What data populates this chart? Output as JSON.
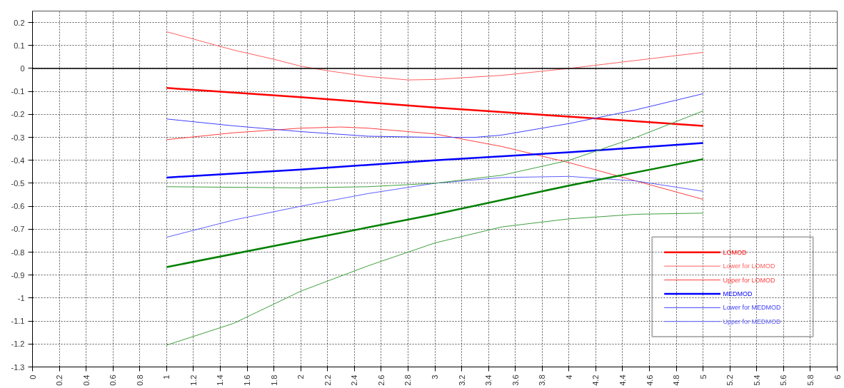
{
  "chart_data": {
    "type": "line",
    "xlim": [
      0,
      6
    ],
    "ylim": [
      -1.3,
      0.25
    ],
    "xticks": [
      0,
      0.2,
      0.4,
      0.6,
      0.8,
      1,
      1.2,
      1.4,
      1.6,
      1.8,
      2,
      2.2,
      2.4,
      2.6,
      2.8,
      3,
      3.2,
      3.4,
      3.6,
      3.8,
      4,
      4.2,
      4.4,
      4.6,
      4.8,
      5,
      5.2,
      5.4,
      5.6,
      5.8,
      6
    ],
    "yticks": [
      -1.3,
      -1.2,
      -1.1,
      -1,
      -0.9,
      -0.8,
      -0.7,
      -0.6,
      -0.5,
      -0.4,
      -0.3,
      -0.2,
      -0.1,
      0,
      0.1,
      0.2
    ],
    "grid": true,
    "legend": "bottom right",
    "line_style": "solid",
    "marker": "none",
    "ref_lines": [
      {
        "axis": "y",
        "value": 0,
        "color": "#000000"
      }
    ],
    "series": [
      {
        "name": "LOMOD",
        "color": "#ff0000",
        "x": [
          1,
          2,
          3,
          4,
          5
        ],
        "values": [
          -0.085,
          -0.125,
          -0.17,
          -0.21,
          -0.25
        ]
      },
      {
        "name": "Lower for LOMOD",
        "color": "#ff6060",
        "x": [
          1,
          1.5,
          1.8,
          2,
          2.2,
          2.5,
          2.8,
          3,
          3.5,
          4,
          4.5,
          5
        ],
        "values": [
          0.16,
          0.08,
          0.04,
          0.01,
          -0.01,
          -0.035,
          -0.05,
          -0.048,
          -0.03,
          0.0,
          0.035,
          0.07
        ]
      },
      {
        "name": "Upper for LOMOD",
        "color": "#ff4040",
        "x": [
          1,
          1.5,
          2,
          2.3,
          2.5,
          3,
          3.5,
          4,
          4.5,
          5
        ],
        "values": [
          -0.31,
          -0.28,
          -0.26,
          -0.255,
          -0.26,
          -0.285,
          -0.34,
          -0.41,
          -0.49,
          -0.57
        ]
      },
      {
        "name": "MEDMOD",
        "color": "#0000ff",
        "x": [
          1,
          2,
          3,
          4,
          5
        ],
        "values": [
          -0.475,
          -0.44,
          -0.4,
          -0.365,
          -0.325
        ]
      },
      {
        "name": "Lower for MEDMOD",
        "color": "#4040ff",
        "x": [
          1,
          1.5,
          2,
          2.5,
          3,
          3.3,
          3.5,
          4,
          4.5,
          5
        ],
        "values": [
          -0.22,
          -0.25,
          -0.275,
          -0.295,
          -0.3,
          -0.3,
          -0.29,
          -0.24,
          -0.18,
          -0.11
        ]
      },
      {
        "name": "Upper for MEDMOD",
        "color": "#6060ff",
        "x": [
          1,
          1.5,
          2,
          2.5,
          3,
          3.5,
          4,
          4.5,
          5
        ],
        "values": [
          -0.735,
          -0.66,
          -0.6,
          -0.545,
          -0.5,
          -0.475,
          -0.47,
          -0.49,
          -0.535
        ]
      },
      {
        "color": "#008000",
        "x": [
          1,
          2,
          3,
          4,
          5
        ],
        "values": [
          -0.865,
          -0.75,
          -0.635,
          -0.51,
          -0.395
        ]
      },
      {
        "color": "#40a040",
        "x": [
          1,
          2,
          2.5,
          3,
          3.5,
          4,
          4.5,
          5
        ],
        "values": [
          -0.515,
          -0.52,
          -0.515,
          -0.5,
          -0.465,
          -0.4,
          -0.3,
          -0.185
        ]
      },
      {
        "color": "#40a040",
        "x": [
          1,
          1.5,
          2,
          2.5,
          3,
          3.5,
          4,
          4.5,
          5
        ],
        "values": [
          -1.205,
          -1.11,
          -0.97,
          -0.86,
          -0.76,
          -0.69,
          -0.655,
          -0.635,
          -0.63
        ]
      }
    ]
  }
}
